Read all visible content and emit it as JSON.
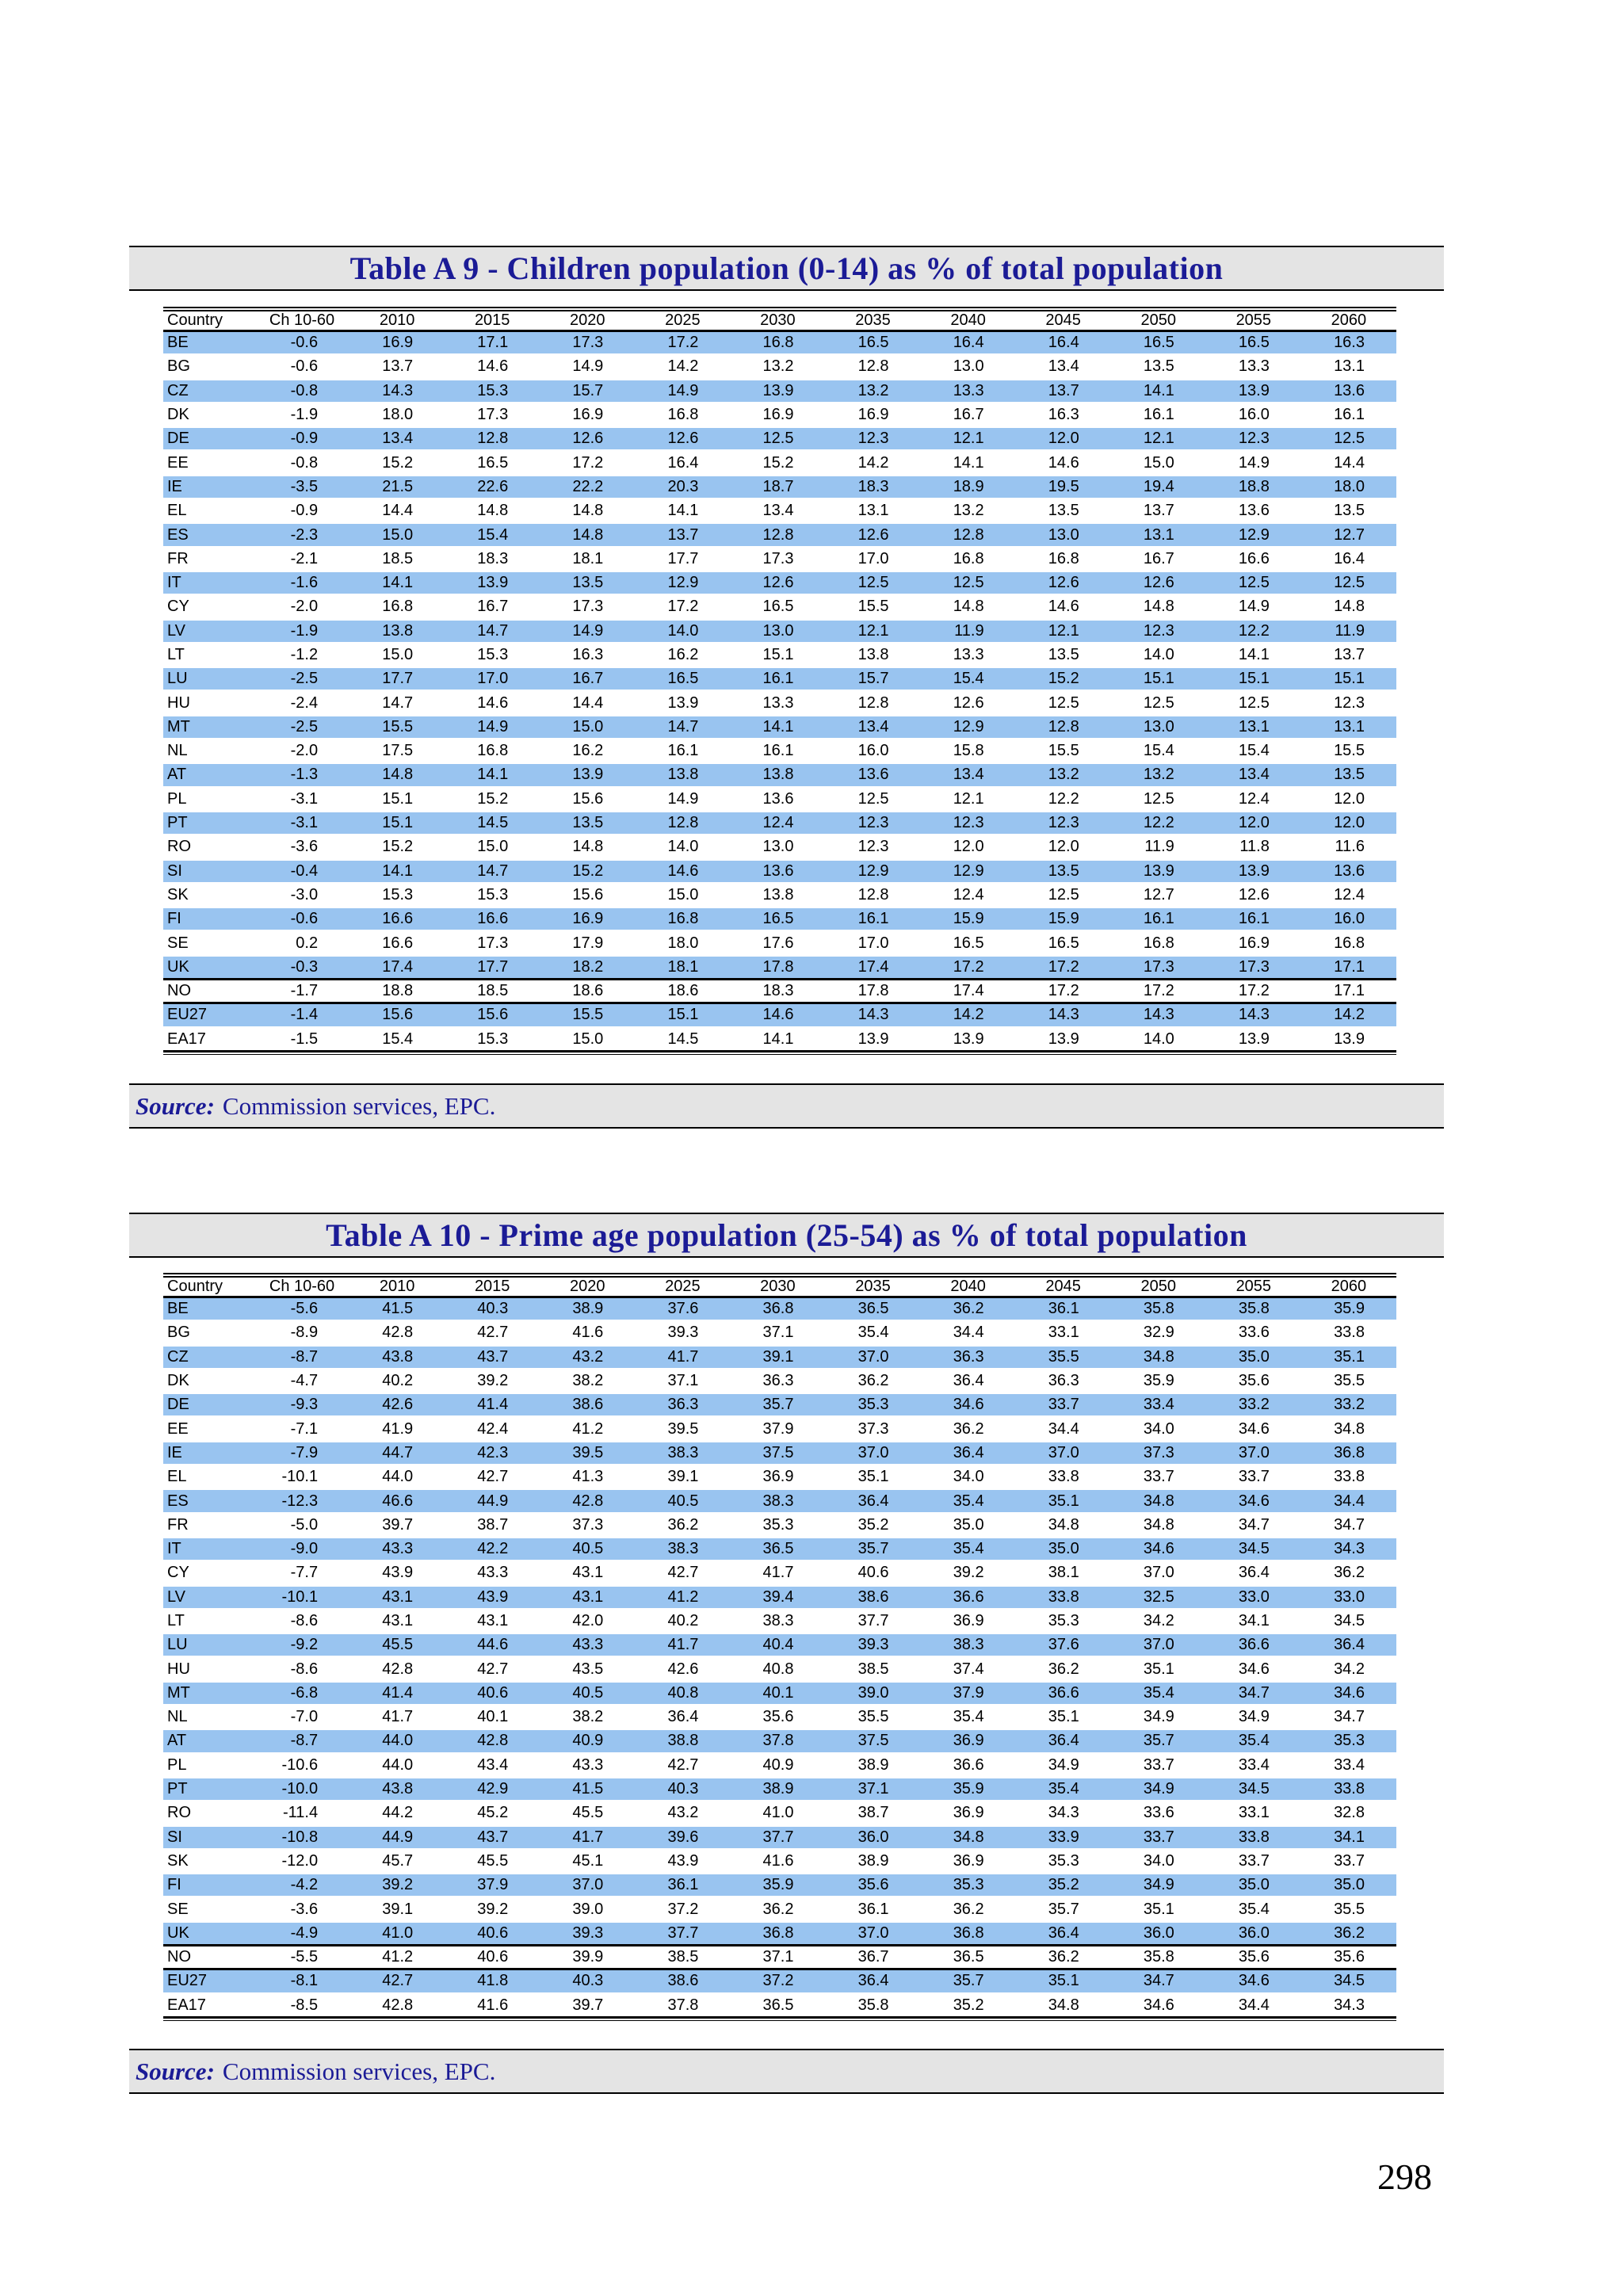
{
  "page": {
    "number": "298"
  },
  "tables": [
    {
      "title": "Table A 9 - Children population (0-14) as % of total population",
      "source_label": "Source:",
      "source_text": "Commission services, EPC.",
      "columns": [
        "Country",
        "Ch 10-60",
        "2010",
        "2015",
        "2020",
        "2025",
        "2030",
        "2035",
        "2040",
        "2045",
        "2050",
        "2055",
        "2060"
      ],
      "thick_border_after": [
        "UK",
        "NO"
      ],
      "rows": [
        [
          "BE",
          "-0.6",
          "16.9",
          "17.1",
          "17.3",
          "17.2",
          "16.8",
          "16.5",
          "16.4",
          "16.4",
          "16.5",
          "16.5",
          "16.3"
        ],
        [
          "BG",
          "-0.6",
          "13.7",
          "14.6",
          "14.9",
          "14.2",
          "13.2",
          "12.8",
          "13.0",
          "13.4",
          "13.5",
          "13.3",
          "13.1"
        ],
        [
          "CZ",
          "-0.8",
          "14.3",
          "15.3",
          "15.7",
          "14.9",
          "13.9",
          "13.2",
          "13.3",
          "13.7",
          "14.1",
          "13.9",
          "13.6"
        ],
        [
          "DK",
          "-1.9",
          "18.0",
          "17.3",
          "16.9",
          "16.8",
          "16.9",
          "16.9",
          "16.7",
          "16.3",
          "16.1",
          "16.0",
          "16.1"
        ],
        [
          "DE",
          "-0.9",
          "13.4",
          "12.8",
          "12.6",
          "12.6",
          "12.5",
          "12.3",
          "12.1",
          "12.0",
          "12.1",
          "12.3",
          "12.5"
        ],
        [
          "EE",
          "-0.8",
          "15.2",
          "16.5",
          "17.2",
          "16.4",
          "15.2",
          "14.2",
          "14.1",
          "14.6",
          "15.0",
          "14.9",
          "14.4"
        ],
        [
          "IE",
          "-3.5",
          "21.5",
          "22.6",
          "22.2",
          "20.3",
          "18.7",
          "18.3",
          "18.9",
          "19.5",
          "19.4",
          "18.8",
          "18.0"
        ],
        [
          "EL",
          "-0.9",
          "14.4",
          "14.8",
          "14.8",
          "14.1",
          "13.4",
          "13.1",
          "13.2",
          "13.5",
          "13.7",
          "13.6",
          "13.5"
        ],
        [
          "ES",
          "-2.3",
          "15.0",
          "15.4",
          "14.8",
          "13.7",
          "12.8",
          "12.6",
          "12.8",
          "13.0",
          "13.1",
          "12.9",
          "12.7"
        ],
        [
          "FR",
          "-2.1",
          "18.5",
          "18.3",
          "18.1",
          "17.7",
          "17.3",
          "17.0",
          "16.8",
          "16.8",
          "16.7",
          "16.6",
          "16.4"
        ],
        [
          "IT",
          "-1.6",
          "14.1",
          "13.9",
          "13.5",
          "12.9",
          "12.6",
          "12.5",
          "12.5",
          "12.6",
          "12.6",
          "12.5",
          "12.5"
        ],
        [
          "CY",
          "-2.0",
          "16.8",
          "16.7",
          "17.3",
          "17.2",
          "16.5",
          "15.5",
          "14.8",
          "14.6",
          "14.8",
          "14.9",
          "14.8"
        ],
        [
          "LV",
          "-1.9",
          "13.8",
          "14.7",
          "14.9",
          "14.0",
          "13.0",
          "12.1",
          "11.9",
          "12.1",
          "12.3",
          "12.2",
          "11.9"
        ],
        [
          "LT",
          "-1.2",
          "15.0",
          "15.3",
          "16.3",
          "16.2",
          "15.1",
          "13.8",
          "13.3",
          "13.5",
          "14.0",
          "14.1",
          "13.7"
        ],
        [
          "LU",
          "-2.5",
          "17.7",
          "17.0",
          "16.7",
          "16.5",
          "16.1",
          "15.7",
          "15.4",
          "15.2",
          "15.1",
          "15.1",
          "15.1"
        ],
        [
          "HU",
          "-2.4",
          "14.7",
          "14.6",
          "14.4",
          "13.9",
          "13.3",
          "12.8",
          "12.6",
          "12.5",
          "12.5",
          "12.5",
          "12.3"
        ],
        [
          "MT",
          "-2.5",
          "15.5",
          "14.9",
          "15.0",
          "14.7",
          "14.1",
          "13.4",
          "12.9",
          "12.8",
          "13.0",
          "13.1",
          "13.1"
        ],
        [
          "NL",
          "-2.0",
          "17.5",
          "16.8",
          "16.2",
          "16.1",
          "16.1",
          "16.0",
          "15.8",
          "15.5",
          "15.4",
          "15.4",
          "15.5"
        ],
        [
          "AT",
          "-1.3",
          "14.8",
          "14.1",
          "13.9",
          "13.8",
          "13.8",
          "13.6",
          "13.4",
          "13.2",
          "13.2",
          "13.4",
          "13.5"
        ],
        [
          "PL",
          "-3.1",
          "15.1",
          "15.2",
          "15.6",
          "14.9",
          "13.6",
          "12.5",
          "12.1",
          "12.2",
          "12.5",
          "12.4",
          "12.0"
        ],
        [
          "PT",
          "-3.1",
          "15.1",
          "14.5",
          "13.5",
          "12.8",
          "12.4",
          "12.3",
          "12.3",
          "12.3",
          "12.2",
          "12.0",
          "12.0"
        ],
        [
          "RO",
          "-3.6",
          "15.2",
          "15.0",
          "14.8",
          "14.0",
          "13.0",
          "12.3",
          "12.0",
          "12.0",
          "11.9",
          "11.8",
          "11.6"
        ],
        [
          "SI",
          "-0.4",
          "14.1",
          "14.7",
          "15.2",
          "14.6",
          "13.6",
          "12.9",
          "12.9",
          "13.5",
          "13.9",
          "13.9",
          "13.6"
        ],
        [
          "SK",
          "-3.0",
          "15.3",
          "15.3",
          "15.6",
          "15.0",
          "13.8",
          "12.8",
          "12.4",
          "12.5",
          "12.7",
          "12.6",
          "12.4"
        ],
        [
          "FI",
          "-0.6",
          "16.6",
          "16.6",
          "16.9",
          "16.8",
          "16.5",
          "16.1",
          "15.9",
          "15.9",
          "16.1",
          "16.1",
          "16.0"
        ],
        [
          "SE",
          "0.2",
          "16.6",
          "17.3",
          "17.9",
          "18.0",
          "17.6",
          "17.0",
          "16.5",
          "16.5",
          "16.8",
          "16.9",
          "16.8"
        ],
        [
          "UK",
          "-0.3",
          "17.4",
          "17.7",
          "18.2",
          "18.1",
          "17.8",
          "17.4",
          "17.2",
          "17.2",
          "17.3",
          "17.3",
          "17.1"
        ],
        [
          "NO",
          "-1.7",
          "18.8",
          "18.5",
          "18.6",
          "18.6",
          "18.3",
          "17.8",
          "17.4",
          "17.2",
          "17.2",
          "17.2",
          "17.1"
        ],
        [
          "EU27",
          "-1.4",
          "15.6",
          "15.6",
          "15.5",
          "15.1",
          "14.6",
          "14.3",
          "14.2",
          "14.3",
          "14.3",
          "14.3",
          "14.2"
        ],
        [
          "EA17",
          "-1.5",
          "15.4",
          "15.3",
          "15.0",
          "14.5",
          "14.1",
          "13.9",
          "13.9",
          "13.9",
          "14.0",
          "13.9",
          "13.9"
        ]
      ]
    },
    {
      "title": "Table A 10 - Prime age population (25-54) as % of total population",
      "source_label": "Source:",
      "source_text": "Commission services, EPC.",
      "columns": [
        "Country",
        "Ch 10-60",
        "2010",
        "2015",
        "2020",
        "2025",
        "2030",
        "2035",
        "2040",
        "2045",
        "2050",
        "2055",
        "2060"
      ],
      "thick_border_after": [
        "UK",
        "NO"
      ],
      "rows": [
        [
          "BE",
          "-5.6",
          "41.5",
          "40.3",
          "38.9",
          "37.6",
          "36.8",
          "36.5",
          "36.2",
          "36.1",
          "35.8",
          "35.8",
          "35.9"
        ],
        [
          "BG",
          "-8.9",
          "42.8",
          "42.7",
          "41.6",
          "39.3",
          "37.1",
          "35.4",
          "34.4",
          "33.1",
          "32.9",
          "33.6",
          "33.8"
        ],
        [
          "CZ",
          "-8.7",
          "43.8",
          "43.7",
          "43.2",
          "41.7",
          "39.1",
          "37.0",
          "36.3",
          "35.5",
          "34.8",
          "35.0",
          "35.1"
        ],
        [
          "DK",
          "-4.7",
          "40.2",
          "39.2",
          "38.2",
          "37.1",
          "36.3",
          "36.2",
          "36.4",
          "36.3",
          "35.9",
          "35.6",
          "35.5"
        ],
        [
          "DE",
          "-9.3",
          "42.6",
          "41.4",
          "38.6",
          "36.3",
          "35.7",
          "35.3",
          "34.6",
          "33.7",
          "33.4",
          "33.2",
          "33.2"
        ],
        [
          "EE",
          "-7.1",
          "41.9",
          "42.4",
          "41.2",
          "39.5",
          "37.9",
          "37.3",
          "36.2",
          "34.4",
          "34.0",
          "34.6",
          "34.8"
        ],
        [
          "IE",
          "-7.9",
          "44.7",
          "42.3",
          "39.5",
          "38.3",
          "37.5",
          "37.0",
          "36.4",
          "37.0",
          "37.3",
          "37.0",
          "36.8"
        ],
        [
          "EL",
          "-10.1",
          "44.0",
          "42.7",
          "41.3",
          "39.1",
          "36.9",
          "35.1",
          "34.0",
          "33.8",
          "33.7",
          "33.7",
          "33.8"
        ],
        [
          "ES",
          "-12.3",
          "46.6",
          "44.9",
          "42.8",
          "40.5",
          "38.3",
          "36.4",
          "35.4",
          "35.1",
          "34.8",
          "34.6",
          "34.4"
        ],
        [
          "FR",
          "-5.0",
          "39.7",
          "38.7",
          "37.3",
          "36.2",
          "35.3",
          "35.2",
          "35.0",
          "34.8",
          "34.8",
          "34.7",
          "34.7"
        ],
        [
          "IT",
          "-9.0",
          "43.3",
          "42.2",
          "40.5",
          "38.3",
          "36.5",
          "35.7",
          "35.4",
          "35.0",
          "34.6",
          "34.5",
          "34.3"
        ],
        [
          "CY",
          "-7.7",
          "43.9",
          "43.3",
          "43.1",
          "42.7",
          "41.7",
          "40.6",
          "39.2",
          "38.1",
          "37.0",
          "36.4",
          "36.2"
        ],
        [
          "LV",
          "-10.1",
          "43.1",
          "43.9",
          "43.1",
          "41.2",
          "39.4",
          "38.6",
          "36.6",
          "33.8",
          "32.5",
          "33.0",
          "33.0"
        ],
        [
          "LT",
          "-8.6",
          "43.1",
          "43.1",
          "42.0",
          "40.2",
          "38.3",
          "37.7",
          "36.9",
          "35.3",
          "34.2",
          "34.1",
          "34.5"
        ],
        [
          "LU",
          "-9.2",
          "45.5",
          "44.6",
          "43.3",
          "41.7",
          "40.4",
          "39.3",
          "38.3",
          "37.6",
          "37.0",
          "36.6",
          "36.4"
        ],
        [
          "HU",
          "-8.6",
          "42.8",
          "42.7",
          "43.5",
          "42.6",
          "40.8",
          "38.5",
          "37.4",
          "36.2",
          "35.1",
          "34.6",
          "34.2"
        ],
        [
          "MT",
          "-6.8",
          "41.4",
          "40.6",
          "40.5",
          "40.8",
          "40.1",
          "39.0",
          "37.9",
          "36.6",
          "35.4",
          "34.7",
          "34.6"
        ],
        [
          "NL",
          "-7.0",
          "41.7",
          "40.1",
          "38.2",
          "36.4",
          "35.6",
          "35.5",
          "35.4",
          "35.1",
          "34.9",
          "34.9",
          "34.7"
        ],
        [
          "AT",
          "-8.7",
          "44.0",
          "42.8",
          "40.9",
          "38.8",
          "37.8",
          "37.5",
          "36.9",
          "36.4",
          "35.7",
          "35.4",
          "35.3"
        ],
        [
          "PL",
          "-10.6",
          "44.0",
          "43.4",
          "43.3",
          "42.7",
          "40.9",
          "38.9",
          "36.6",
          "34.9",
          "33.7",
          "33.4",
          "33.4"
        ],
        [
          "PT",
          "-10.0",
          "43.8",
          "42.9",
          "41.5",
          "40.3",
          "38.9",
          "37.1",
          "35.9",
          "35.4",
          "34.9",
          "34.5",
          "33.8"
        ],
        [
          "RO",
          "-11.4",
          "44.2",
          "45.2",
          "45.5",
          "43.2",
          "41.0",
          "38.7",
          "36.9",
          "34.3",
          "33.6",
          "33.1",
          "32.8"
        ],
        [
          "SI",
          "-10.8",
          "44.9",
          "43.7",
          "41.7",
          "39.6",
          "37.7",
          "36.0",
          "34.8",
          "33.9",
          "33.7",
          "33.8",
          "34.1"
        ],
        [
          "SK",
          "-12.0",
          "45.7",
          "45.5",
          "45.1",
          "43.9",
          "41.6",
          "38.9",
          "36.9",
          "35.3",
          "34.0",
          "33.7",
          "33.7"
        ],
        [
          "FI",
          "-4.2",
          "39.2",
          "37.9",
          "37.0",
          "36.1",
          "35.9",
          "35.6",
          "35.3",
          "35.2",
          "34.9",
          "35.0",
          "35.0"
        ],
        [
          "SE",
          "-3.6",
          "39.1",
          "39.2",
          "39.0",
          "37.2",
          "36.2",
          "36.1",
          "36.2",
          "35.7",
          "35.1",
          "35.4",
          "35.5"
        ],
        [
          "UK",
          "-4.9",
          "41.0",
          "40.6",
          "39.3",
          "37.7",
          "36.8",
          "37.0",
          "36.8",
          "36.4",
          "36.0",
          "36.0",
          "36.2"
        ],
        [
          "NO",
          "-5.5",
          "41.2",
          "40.6",
          "39.9",
          "38.5",
          "37.1",
          "36.7",
          "36.5",
          "36.2",
          "35.8",
          "35.6",
          "35.6"
        ],
        [
          "EU27",
          "-8.1",
          "42.7",
          "41.8",
          "40.3",
          "38.6",
          "37.2",
          "36.4",
          "35.7",
          "35.1",
          "34.7",
          "34.6",
          "34.5"
        ],
        [
          "EA17",
          "-8.5",
          "42.8",
          "41.6",
          "39.7",
          "37.8",
          "36.5",
          "35.8",
          "35.2",
          "34.8",
          "34.6",
          "34.4",
          "34.3"
        ]
      ]
    }
  ]
}
